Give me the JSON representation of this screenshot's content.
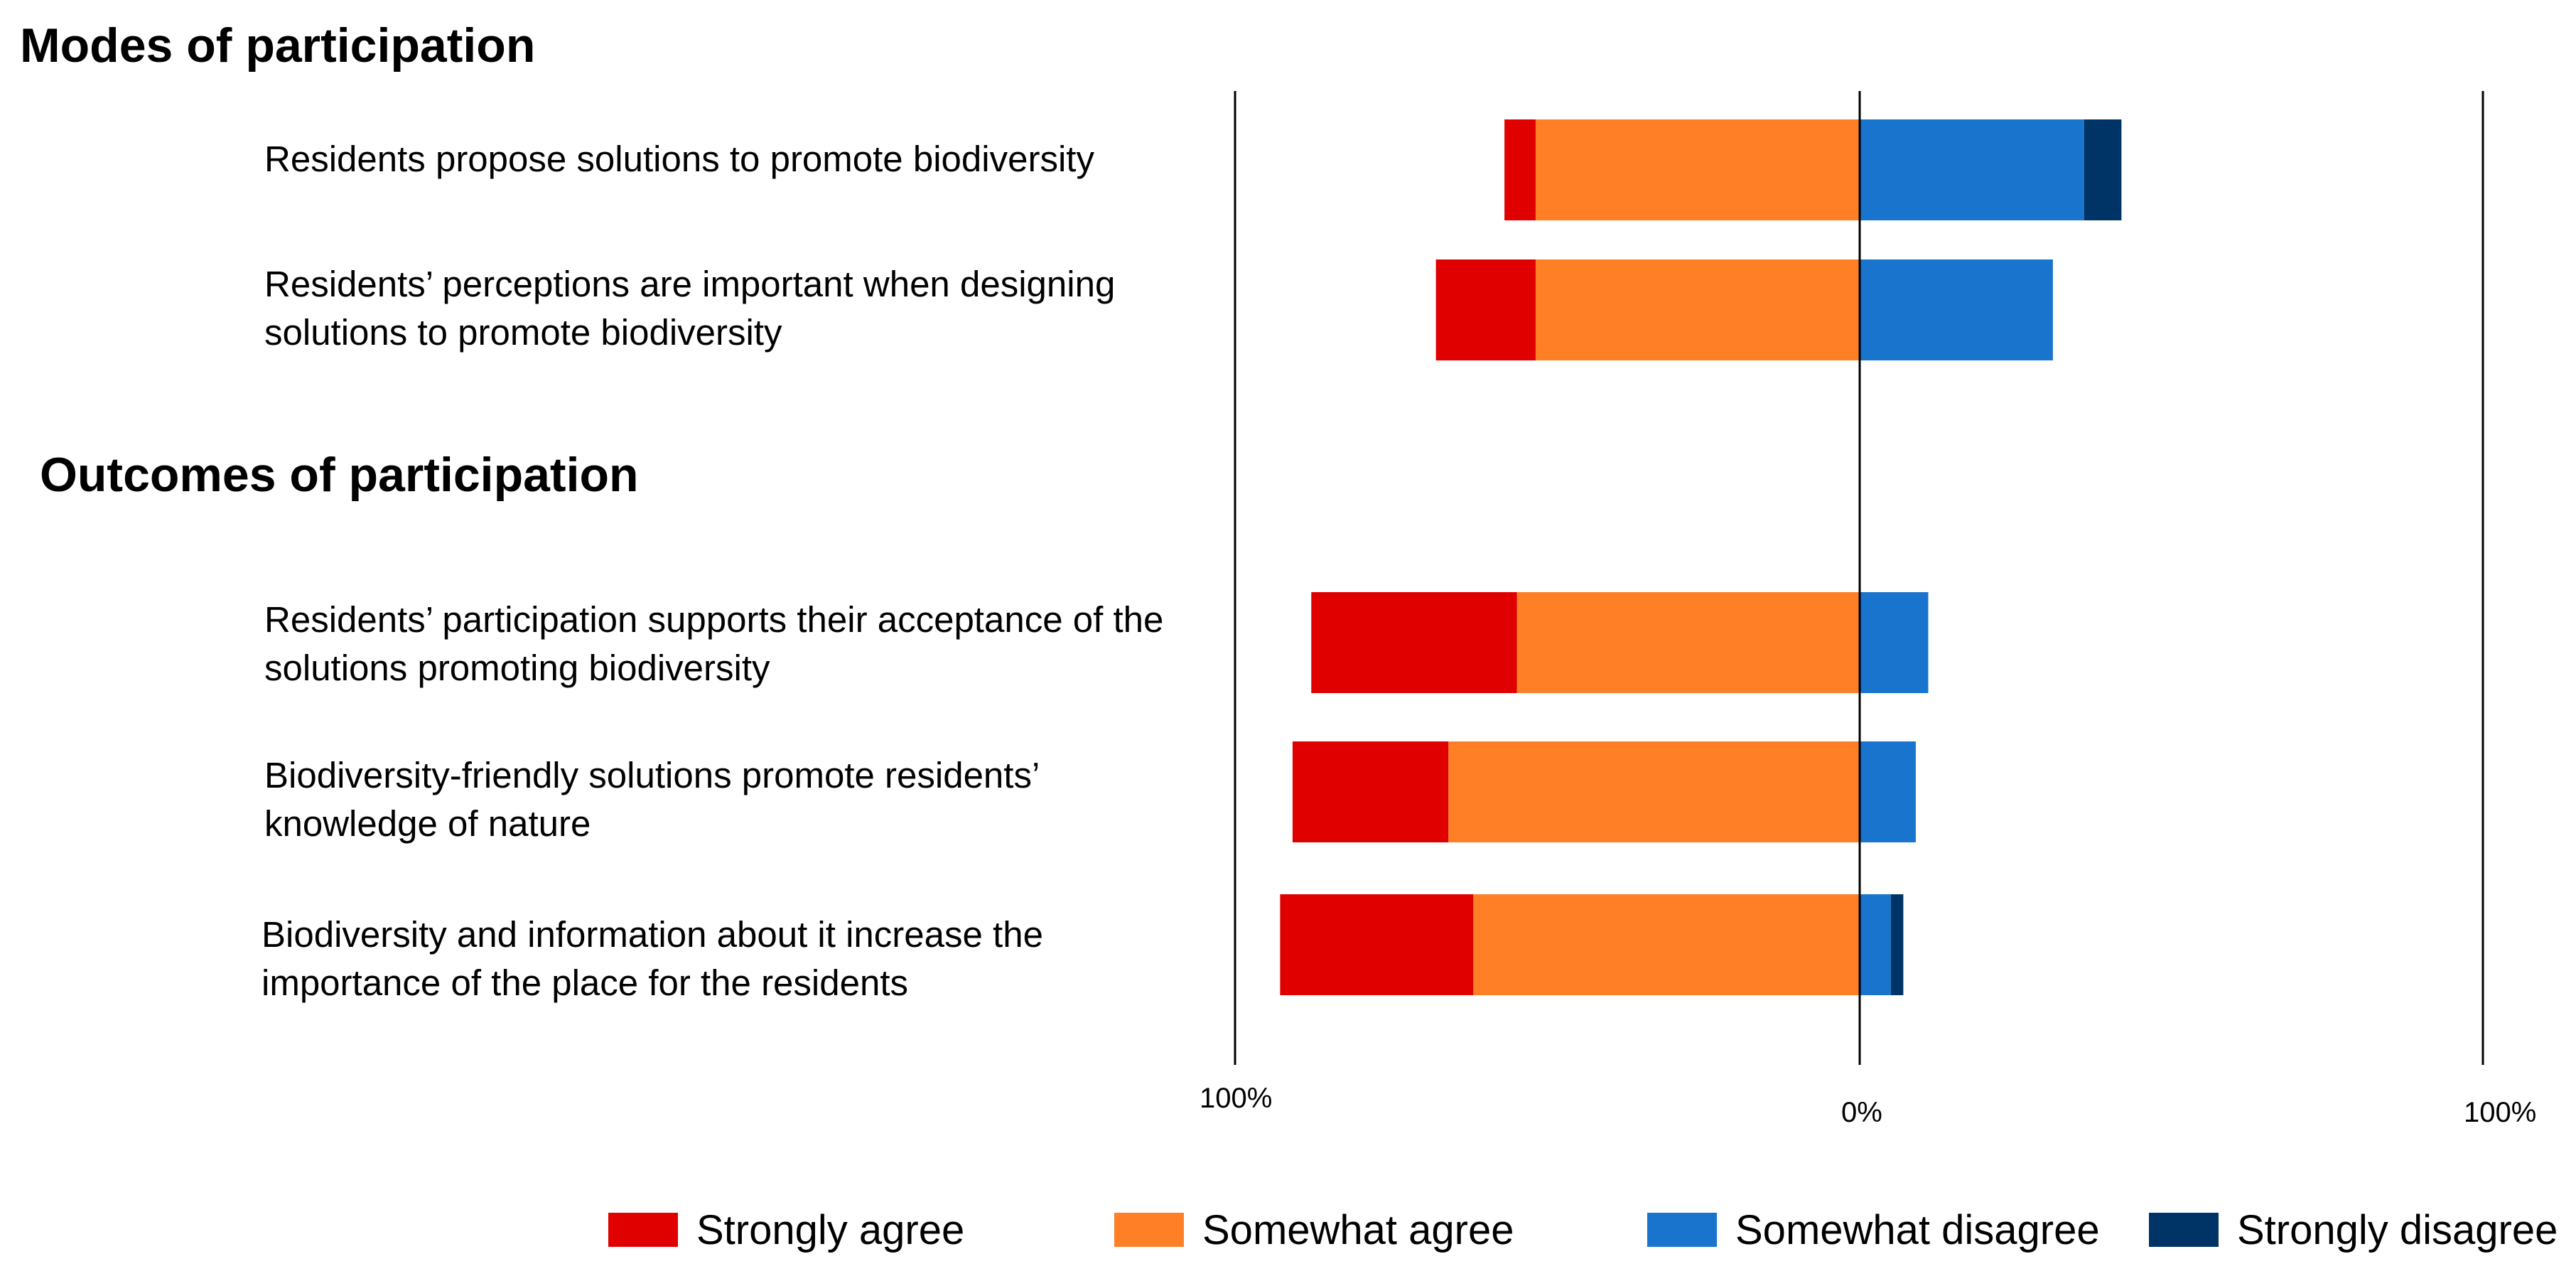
{
  "sections": {
    "modes_title": "Modes of participation",
    "outcomes_title": "Outcomes of participation"
  },
  "colors": {
    "strongly_agree": "#e00000",
    "somewhat_agree": "#ff7f27",
    "somewhat_disagree": "#1874cd",
    "strongly_disagree": "#003366"
  },
  "chart_data": {
    "type": "bar",
    "orientation": "horizontal-diverging",
    "title": "",
    "xlabel": "",
    "ylabel": "",
    "xlim": [
      -100,
      100
    ],
    "x_tick_labels": {
      "left": "100%",
      "center": "0%",
      "right": "100%"
    },
    "categories": [
      "Residents propose solutions to promote biodiversity",
      "Residents’ perceptions are important when designing solutions to promote biodiversity",
      "Residents’ participation supports their acceptance of the solutions promoting biodiversity",
      "Biodiversity-friendly solutions promote residents’ knowledge of nature",
      "Biodiversity and information about it increase the importance of the place for the residents"
    ],
    "series": [
      {
        "name": "Strongly agree",
        "side": "left",
        "values": [
          5,
          16,
          33,
          25,
          31
        ]
      },
      {
        "name": "Somewhat agree",
        "side": "left",
        "values": [
          52,
          52,
          55,
          66,
          62
        ]
      },
      {
        "name": "Somewhat disagree",
        "side": "right",
        "values": [
          36,
          31,
          11,
          9,
          5
        ]
      },
      {
        "name": "Strongly disagree",
        "side": "right",
        "values": [
          6,
          0,
          0,
          0,
          2
        ]
      }
    ],
    "grid": false,
    "legend_position": "bottom"
  }
}
